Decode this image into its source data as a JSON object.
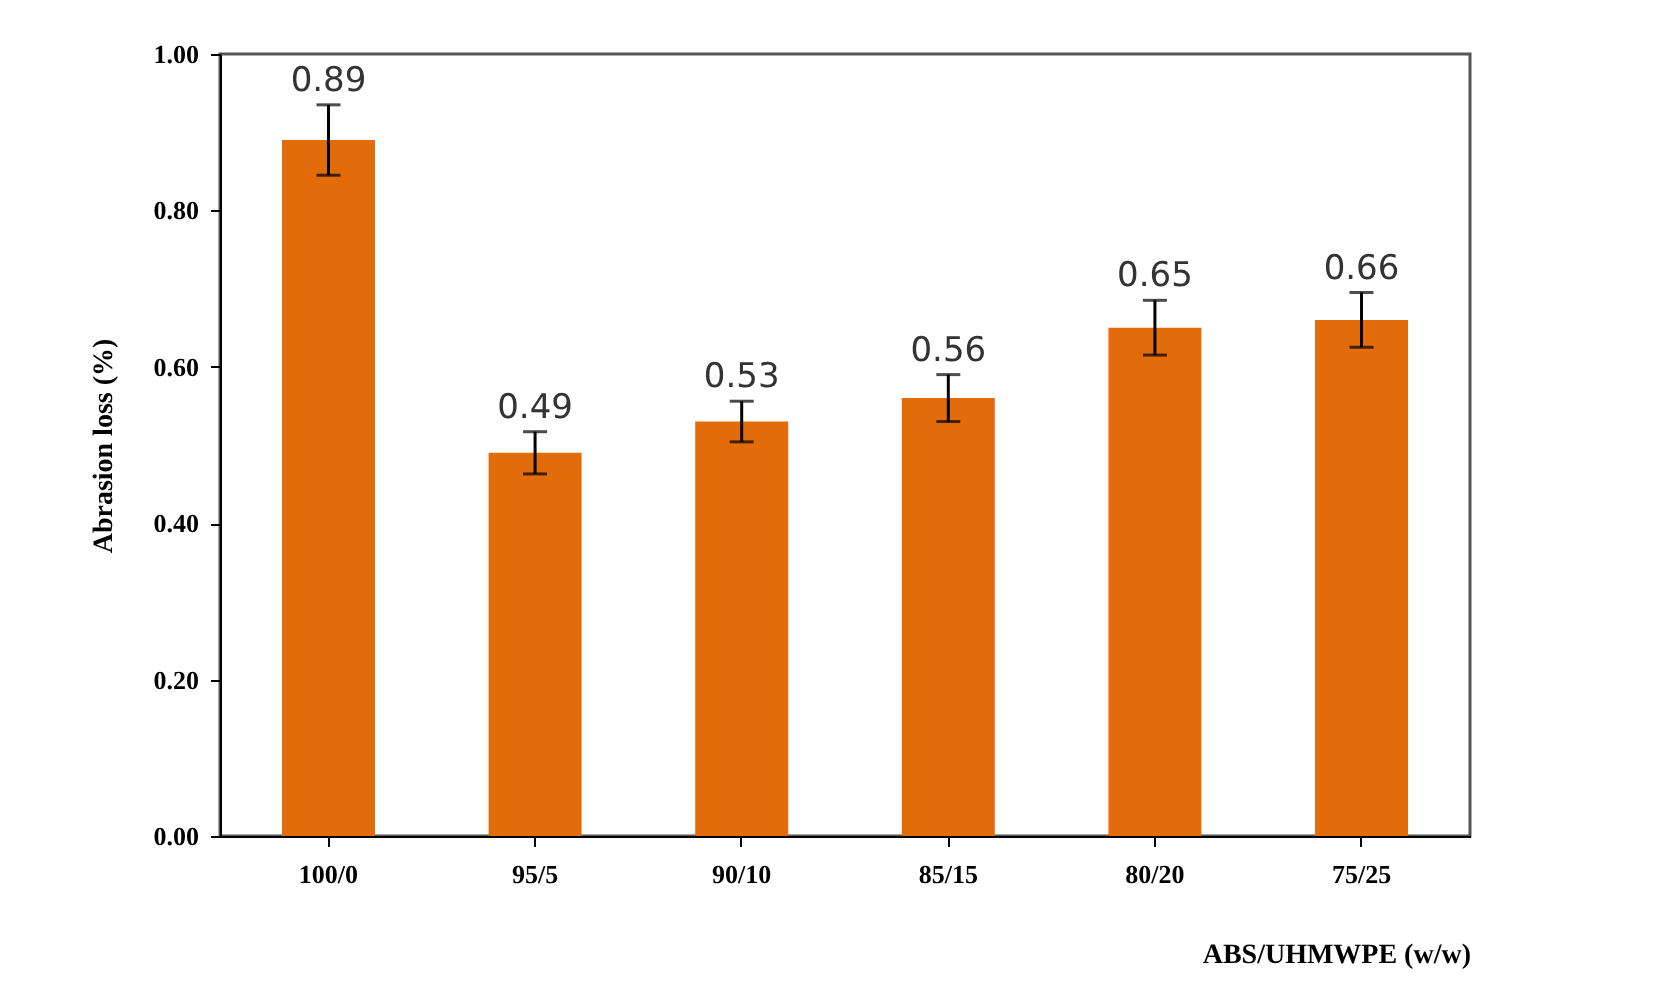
{
  "chart_data": {
    "type": "bar",
    "xlabel": "ABS/UHMWPE  (w/w)",
    "ylabel": "Abrasion  loss (%)",
    "categories": [
      "100/0",
      "95/5",
      "90/10",
      "85/15",
      "80/20",
      "75/25"
    ],
    "values": [
      0.89,
      0.49,
      0.53,
      0.56,
      0.65,
      0.66
    ],
    "errors": [
      0.045,
      0.027,
      0.026,
      0.03,
      0.035,
      0.035
    ],
    "color": "#e36c0a",
    "data_labels": true,
    "ylim": [
      0,
      1
    ],
    "yticks": [
      {
        "value": 0,
        "label": "0.00"
      },
      {
        "value": 0.2,
        "label": "0.20"
      },
      {
        "value": 0.4,
        "label": "0.40"
      },
      {
        "value": 0.6,
        "label": "0.60"
      },
      {
        "value": 0.8,
        "label": "0.80"
      },
      {
        "value": 1,
        "label": "1.00"
      }
    ],
    "grid": false
  }
}
